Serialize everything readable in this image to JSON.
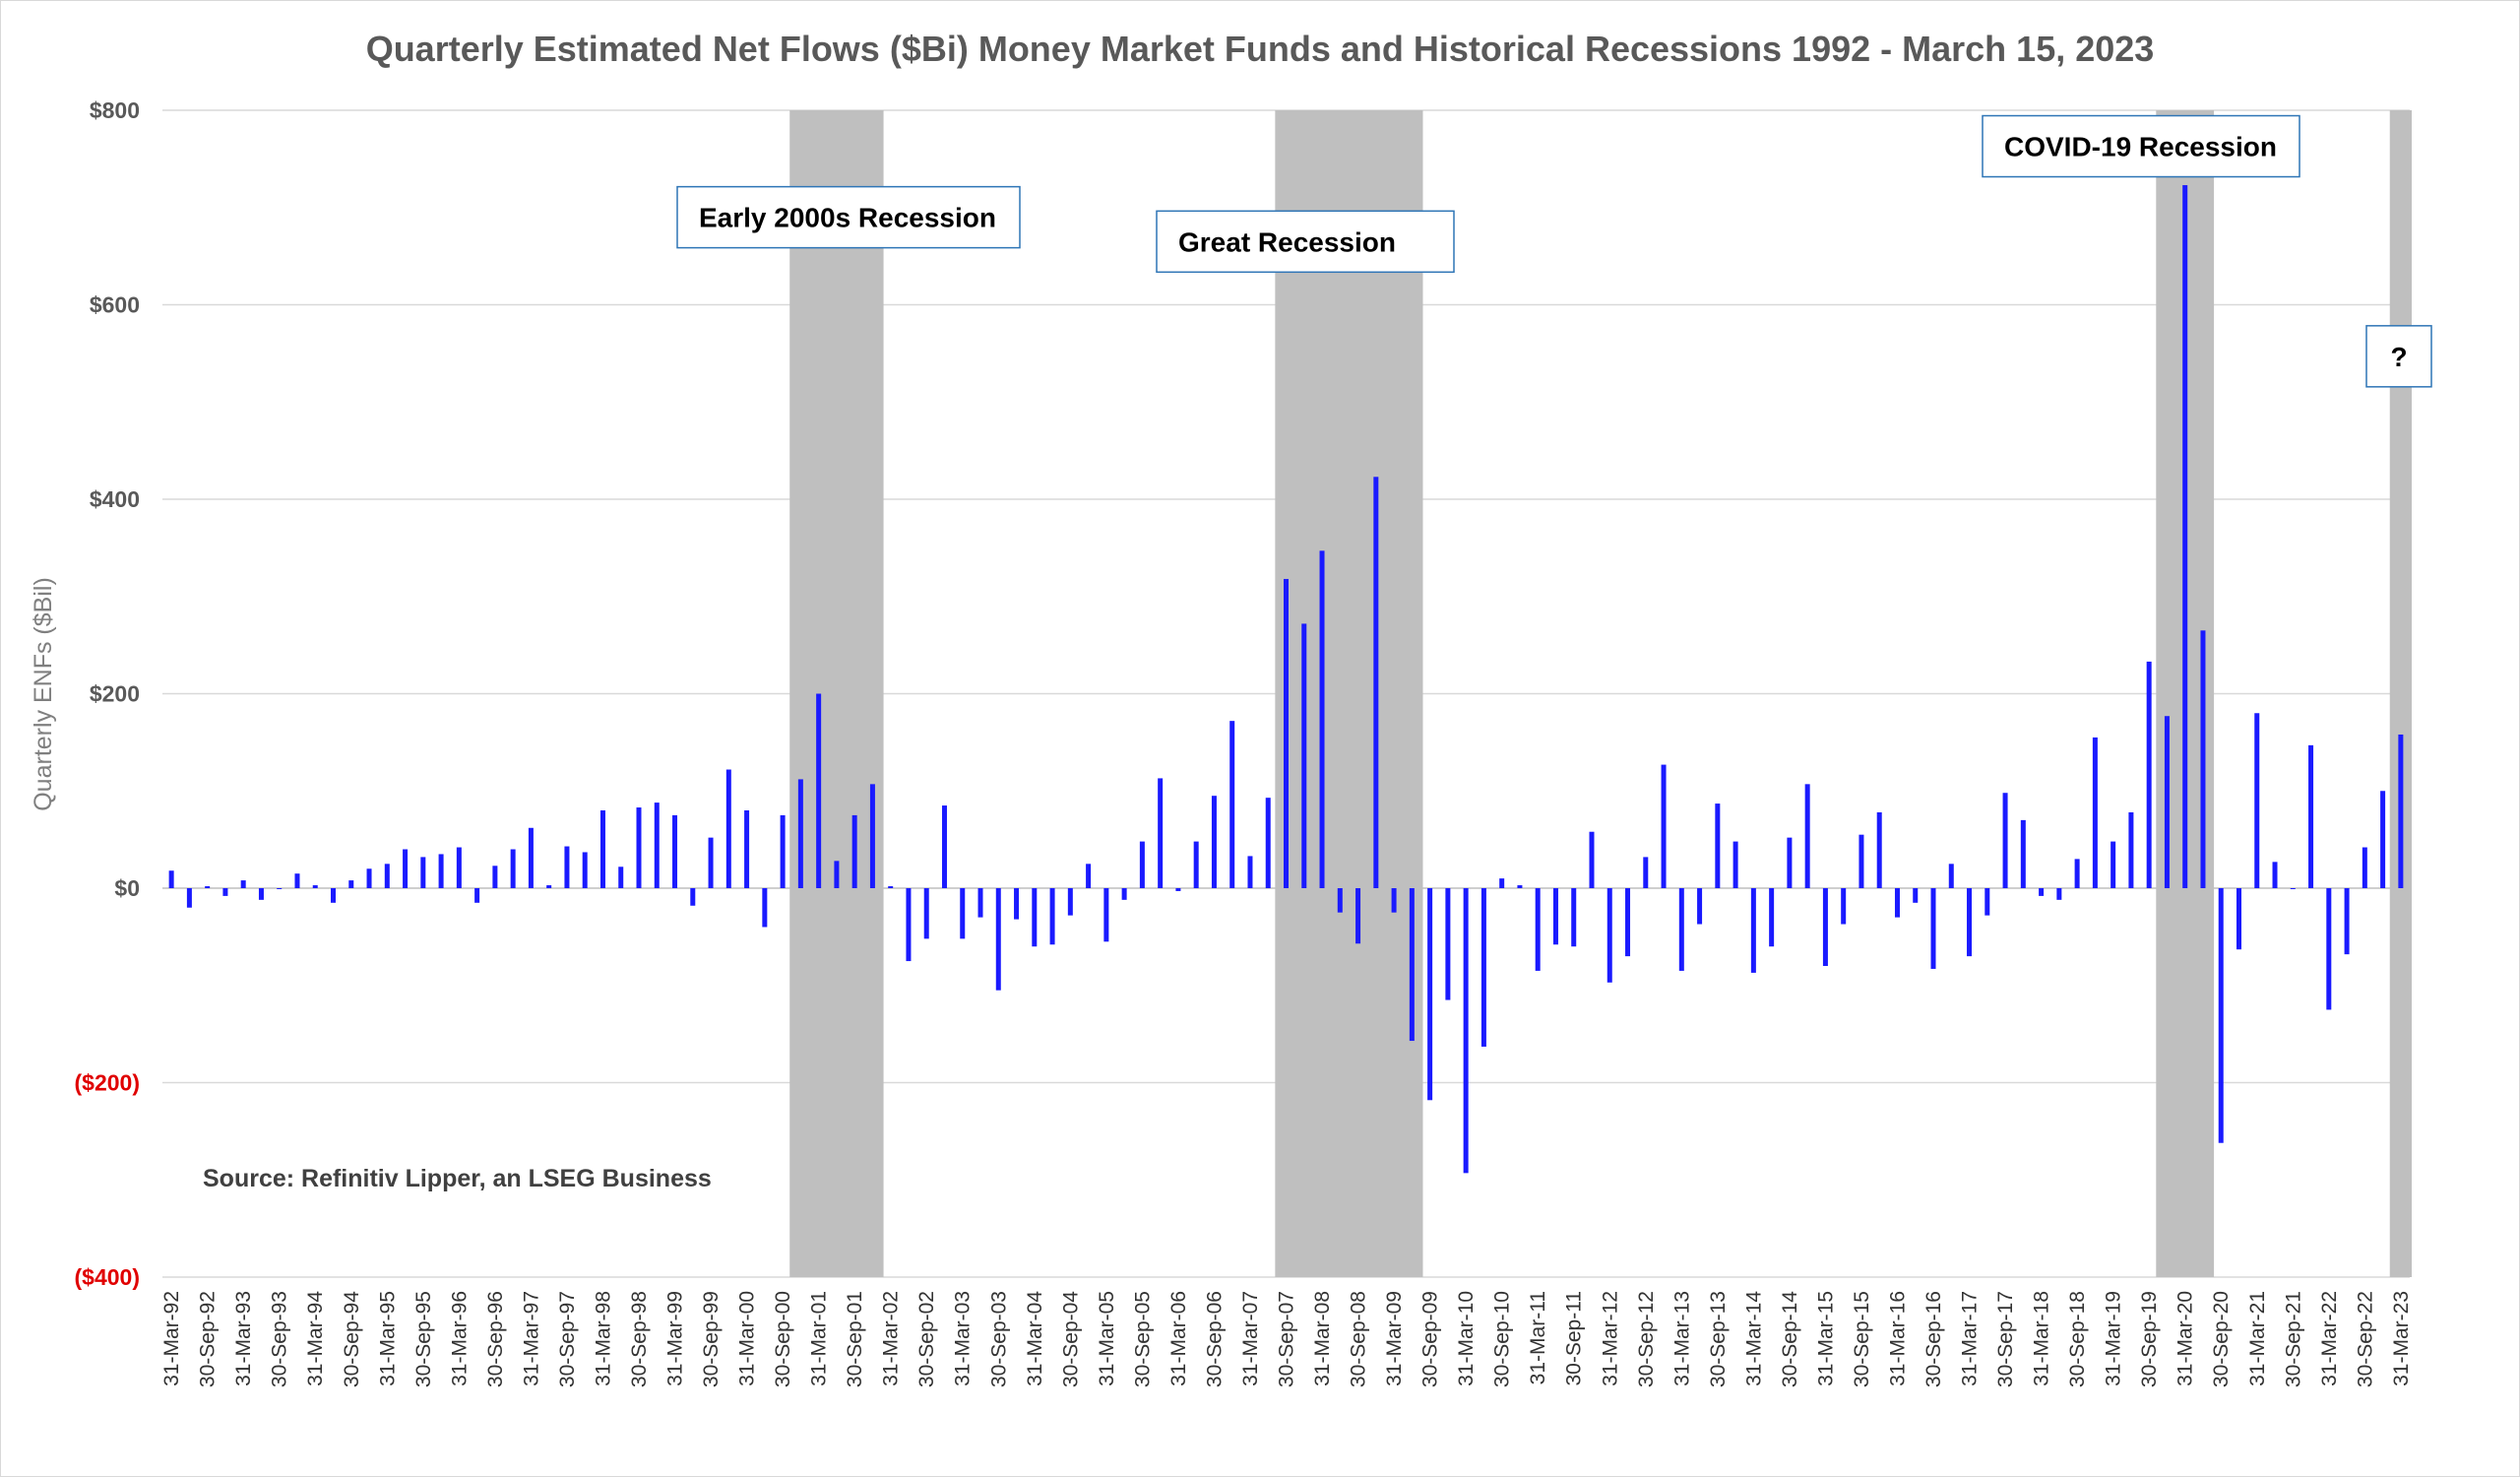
{
  "chart_data": {
    "type": "bar",
    "title": "Quarterly Estimated Net Flows ($Bi) Money Market Funds and Historical Recessions 1992 - March 15, 2023",
    "ylabel": "Quarterly ENFs ($Bil)",
    "xlabel": "",
    "ylim": [
      -400,
      800
    ],
    "yticks": [
      {
        "value": 800,
        "label": "$800"
      },
      {
        "value": 600,
        "label": "$600"
      },
      {
        "value": 400,
        "label": "$400"
      },
      {
        "value": 200,
        "label": "$200"
      },
      {
        "value": 0,
        "label": "$0"
      },
      {
        "value": -200,
        "label": "($200)"
      },
      {
        "value": -400,
        "label": "($400)"
      }
    ],
    "grid": true,
    "bar_color": "#1a1aff",
    "negative_tick_color": "#e00000",
    "recession_color": "#bfbfbf",
    "categories": [
      "31-Mar-92",
      "30-Jun-92",
      "30-Sep-92",
      "31-Dec-92",
      "31-Mar-93",
      "30-Jun-93",
      "30-Sep-93",
      "31-Dec-93",
      "31-Mar-94",
      "30-Jun-94",
      "30-Sep-94",
      "31-Dec-94",
      "31-Mar-95",
      "30-Jun-95",
      "30-Sep-95",
      "31-Dec-95",
      "31-Mar-96",
      "30-Jun-96",
      "30-Sep-96",
      "31-Dec-96",
      "31-Mar-97",
      "30-Jun-97",
      "30-Sep-97",
      "31-Dec-97",
      "31-Mar-98",
      "30-Jun-98",
      "30-Sep-98",
      "31-Dec-98",
      "31-Mar-99",
      "30-Jun-99",
      "30-Sep-99",
      "31-Dec-99",
      "31-Mar-00",
      "30-Jun-00",
      "30-Sep-00",
      "31-Dec-00",
      "31-Mar-01",
      "30-Jun-01",
      "30-Sep-01",
      "31-Dec-01",
      "31-Mar-02",
      "30-Jun-02",
      "30-Sep-02",
      "31-Dec-02",
      "31-Mar-03",
      "30-Jun-03",
      "30-Sep-03",
      "31-Dec-03",
      "31-Mar-04",
      "30-Jun-04",
      "30-Sep-04",
      "31-Dec-04",
      "31-Mar-05",
      "30-Jun-05",
      "30-Sep-05",
      "31-Dec-05",
      "31-Mar-06",
      "30-Jun-06",
      "30-Sep-06",
      "31-Dec-06",
      "31-Mar-07",
      "30-Jun-07",
      "30-Sep-07",
      "31-Dec-07",
      "31-Mar-08",
      "30-Jun-08",
      "30-Sep-08",
      "31-Dec-08",
      "31-Mar-09",
      "30-Jun-09",
      "30-Sep-09",
      "31-Dec-09",
      "31-Mar-10",
      "30-Jun-10",
      "30-Sep-10",
      "31-Dec-10",
      "31-Mar-11",
      "30-Jun-11",
      "30-Sep-11",
      "31-Dec-11",
      "31-Mar-12",
      "30-Jun-12",
      "30-Sep-12",
      "31-Dec-12",
      "31-Mar-13",
      "30-Jun-13",
      "30-Sep-13",
      "31-Dec-13",
      "31-Mar-14",
      "30-Jun-14",
      "30-Sep-14",
      "31-Dec-14",
      "31-Mar-15",
      "30-Jun-15",
      "30-Sep-15",
      "31-Dec-15",
      "31-Mar-16",
      "30-Jun-16",
      "30-Sep-16",
      "31-Dec-16",
      "31-Mar-17",
      "30-Jun-17",
      "30-Sep-17",
      "31-Dec-17",
      "31-Mar-18",
      "30-Jun-18",
      "30-Sep-18",
      "31-Dec-18",
      "31-Mar-19",
      "30-Jun-19",
      "30-Sep-19",
      "31-Dec-19",
      "31-Mar-20",
      "30-Jun-20",
      "30-Sep-20",
      "31-Dec-20",
      "31-Mar-21",
      "30-Jun-21",
      "30-Sep-21",
      "31-Dec-21",
      "31-Mar-22",
      "30-Jun-22",
      "30-Sep-22",
      "31-Dec-22",
      "31-Mar-23"
    ],
    "values": [
      18,
      -20,
      2,
      -8,
      8,
      -12,
      0,
      15,
      3,
      -15,
      8,
      20,
      25,
      40,
      32,
      35,
      42,
      -15,
      23,
      40,
      62,
      3,
      43,
      37,
      80,
      22,
      83,
      88,
      75,
      -18,
      52,
      122,
      80,
      -40,
      75,
      112,
      200,
      28,
      75,
      107,
      2,
      -75,
      -52,
      85,
      -52,
      -30,
      -105,
      -32,
      -60,
      -58,
      -28,
      25,
      -55,
      -12,
      48,
      113,
      -3,
      48,
      95,
      172,
      33,
      93,
      318,
      272,
      347,
      -25,
      -57,
      423,
      -25,
      -157,
      -218,
      -115,
      -293,
      -163,
      10,
      3,
      -85,
      -58,
      -60,
      58,
      -97,
      -70,
      32,
      127,
      -85,
      -37,
      87,
      48,
      -87,
      -60,
      52,
      107,
      -80,
      -37,
      55,
      78,
      -30,
      -15,
      -83,
      25,
      -70,
      -28,
      98,
      70,
      -8,
      -12,
      30,
      155,
      48,
      78,
      233,
      177,
      723,
      265,
      -262,
      -63,
      180,
      27,
      0,
      147,
      -125,
      -68,
      42,
      100,
      158
    ],
    "tick_labels": [
      "31-Mar-92",
      "30-Sep-92",
      "31-Mar-93",
      "30-Sep-93",
      "31-Mar-94",
      "30-Sep-94",
      "31-Mar-95",
      "30-Sep-95",
      "31-Mar-96",
      "30-Sep-96",
      "31-Mar-97",
      "30-Sep-97",
      "31-Mar-98",
      "30-Sep-98",
      "31-Mar-99",
      "30-Sep-99",
      "31-Mar-00",
      "30-Sep-00",
      "31-Mar-01",
      "30-Sep-01",
      "31-Mar-02",
      "30-Sep-02",
      "31-Mar-03",
      "30-Sep-03",
      "31-Mar-04",
      "30-Sep-04",
      "31-Mar-05",
      "30-Sep-05",
      "31-Mar-06",
      "30-Sep-06",
      "31-Mar-07",
      "30-Sep-07",
      "31-Mar-08",
      "30-Sep-08",
      "31-Mar-09",
      "30-Sep-09",
      "31-Mar-10",
      "30-Sep-10",
      "31-Mar-11",
      "30-Sep-11",
      "31-Mar-12",
      "30-Sep-12",
      "31-Mar-13",
      "30-Sep-13",
      "31-Mar-14",
      "30-Sep-14",
      "31-Mar-15",
      "30-Sep-15",
      "31-Mar-16",
      "30-Sep-16",
      "31-Mar-17",
      "30-Sep-17",
      "31-Mar-18",
      "30-Sep-18",
      "31-Mar-19",
      "30-Sep-19",
      "31-Mar-20",
      "30-Sep-20",
      "31-Mar-21",
      "30-Sep-21",
      "31-Mar-22",
      "30-Sep-22",
      "31-Mar-23"
    ],
    "recessions": [
      {
        "start": "31-Dec-00",
        "end": "31-Dec-01"
      },
      {
        "start": "30-Sep-07",
        "end": "30-Jun-09"
      },
      {
        "start": "31-Dec-19",
        "end": "30-Jun-20"
      },
      {
        "start": "31-Mar-23",
        "end": "31-Mar-23"
      }
    ],
    "annotations": [
      {
        "label": "Early 2000s Recession",
        "value": 690
      },
      {
        "label": "Great Recession",
        "value": 665
      },
      {
        "label": "COVID-19 Recession",
        "value": 763
      },
      {
        "label": "?",
        "value": 547
      }
    ],
    "source": "Source: Refinitiv Lipper, an LSEG Business"
  }
}
